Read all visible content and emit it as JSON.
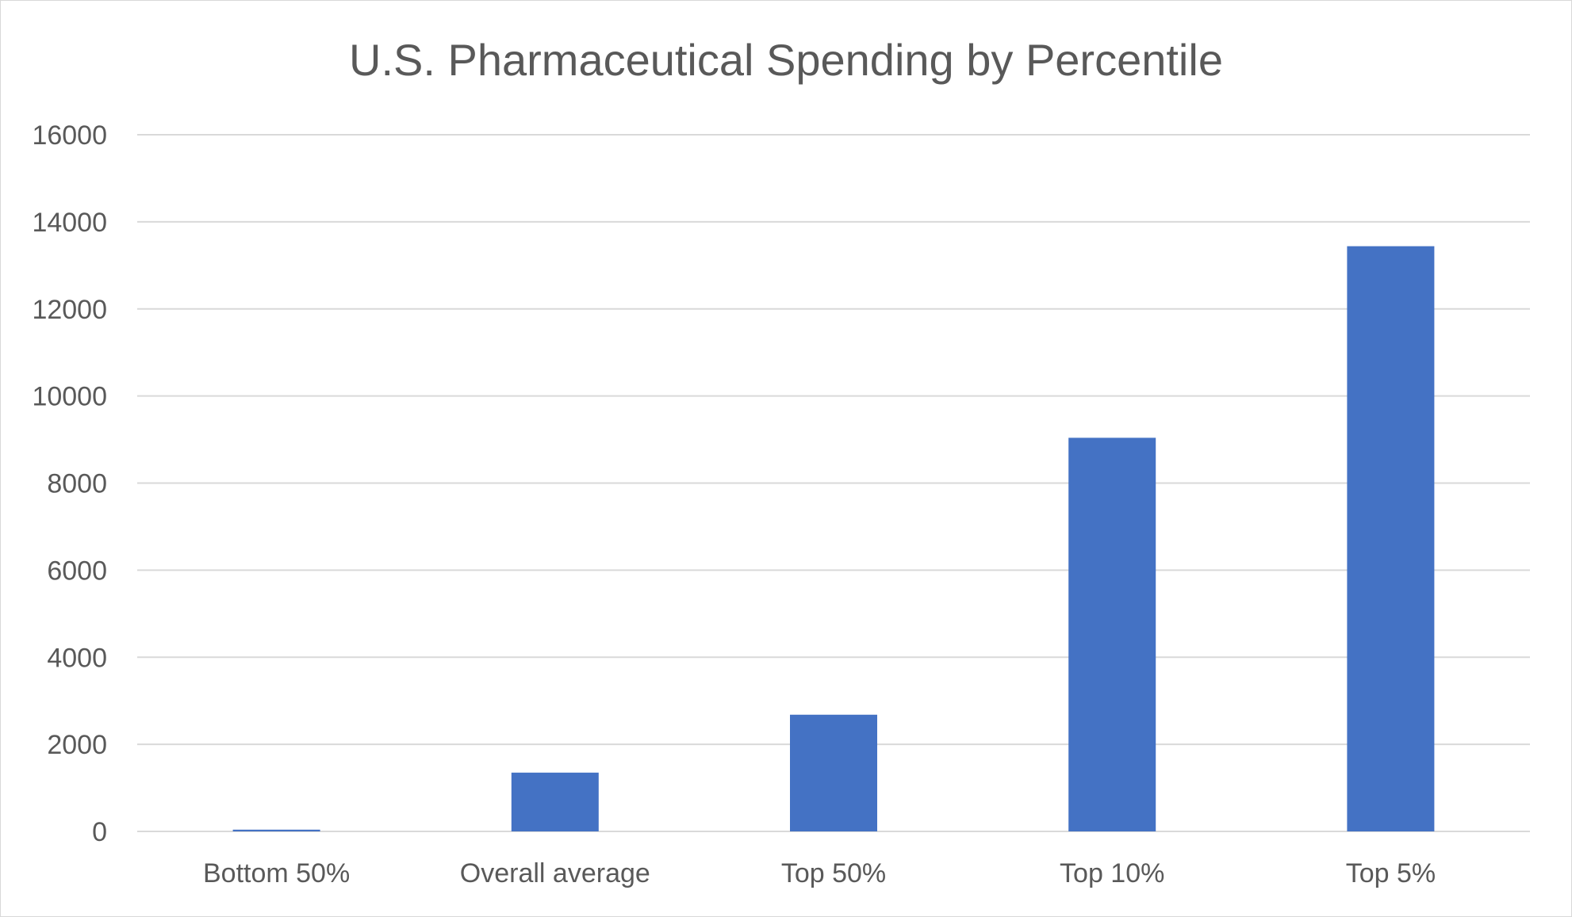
{
  "chart_data": {
    "type": "bar",
    "title": "U.S. Pharmaceutical Spending by Percentile",
    "xlabel": "",
    "ylabel": "",
    "categories": [
      "Bottom 50%",
      "Overall average",
      "Top 50%",
      "Top 10%",
      "Top 5%"
    ],
    "series": [
      {
        "values": [
          40,
          1350,
          2680,
          9040,
          13440
        ],
        "color": "#4472c4"
      }
    ],
    "ylim": [
      0,
      16000
    ],
    "yticks": [
      0,
      2000,
      4000,
      6000,
      8000,
      10000,
      12000,
      14000,
      16000
    ],
    "ytick_labels": [
      "0",
      "2000",
      "4000",
      "6000",
      "8000",
      "10000",
      "12000",
      "14000",
      "16000"
    ],
    "grid": true,
    "legend": "none",
    "gridline_color": "#d9d9d9",
    "text_color": "#595959"
  }
}
